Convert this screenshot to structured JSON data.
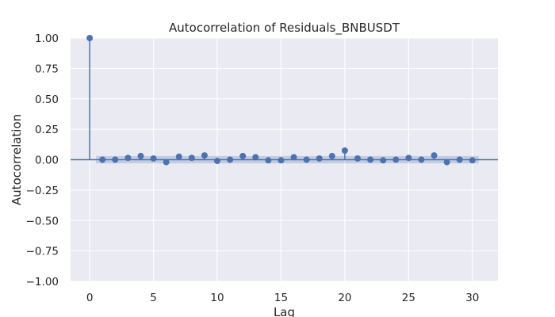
{
  "chart_data": {
    "type": "scatter",
    "subtype": "acf-stem",
    "title": "Autocorrelation of Residuals_BNBUSDT",
    "xlabel": "Lag",
    "ylabel": "Autocorrelation",
    "xlim": [
      -1.5,
      32
    ],
    "ylim": [
      -1.0,
      1.0
    ],
    "x_ticks": [
      0,
      5,
      10,
      15,
      20,
      25,
      30
    ],
    "x_tick_labels": [
      "0",
      "5",
      "10",
      "15",
      "20",
      "25",
      "30"
    ],
    "y_ticks": [
      1.0,
      0.75,
      0.5,
      0.25,
      0.0,
      -0.25,
      -0.5,
      -0.75,
      -1.0
    ],
    "y_tick_labels": [
      "1.00",
      "0.75",
      "0.50",
      "0.25",
      "0.00",
      "−0.25",
      "−0.50",
      "−0.75",
      "−1.00"
    ],
    "grid": true,
    "colors": {
      "background": "#eaeaf2",
      "grid": "#ffffff",
      "marker": "#4c72b0",
      "confidence_band": "#4c72b0"
    },
    "series": [
      {
        "x": [
          0,
          1,
          2,
          3,
          4,
          5,
          6,
          7,
          8,
          9,
          10,
          11,
          12,
          13,
          14,
          15,
          16,
          17,
          18,
          19,
          20,
          21,
          22,
          23,
          24,
          25,
          26,
          27,
          28,
          29,
          30
        ],
        "values": [
          1.0,
          0.0,
          0.0,
          0.015,
          0.03,
          0.01,
          -0.02,
          0.025,
          0.015,
          0.035,
          -0.01,
          0.0,
          0.03,
          0.02,
          -0.005,
          -0.005,
          0.02,
          0.0,
          0.01,
          0.03,
          0.075,
          0.01,
          0.0,
          -0.005,
          0.0,
          0.015,
          0.0,
          0.035,
          -0.02,
          0.0,
          -0.005
        ]
      }
    ],
    "confidence_interval": [
      -0.03,
      0.03
    ]
  }
}
